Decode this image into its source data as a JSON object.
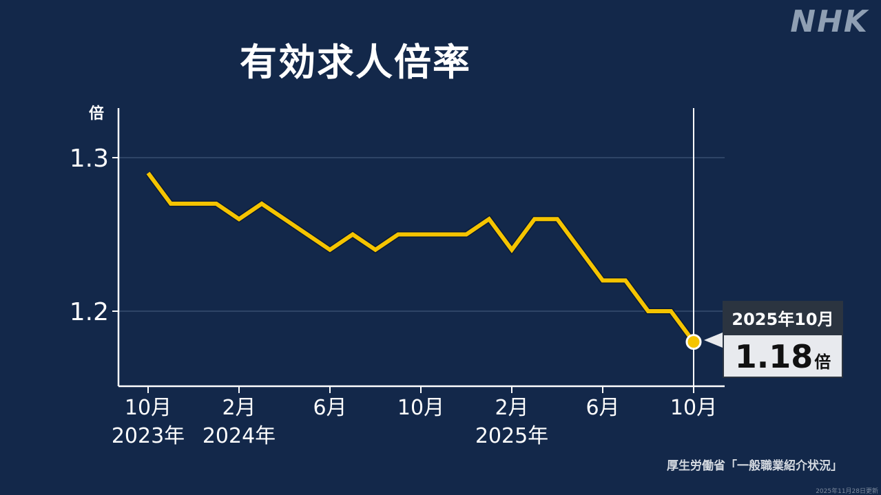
{
  "brand": {
    "logo": "NHK"
  },
  "title": "有効求人倍率",
  "callout": {
    "period": "2025年10月",
    "value": "1.18",
    "unit": "倍"
  },
  "source": "厚生労働省「一般職業紹介状況」",
  "updated": "2025年11月28日更新",
  "colors": {
    "background": "#13284a",
    "line": "#f5c400",
    "axis": "#ffffff",
    "grid": "#2e4466"
  },
  "chart_data": {
    "type": "line",
    "title": "有効求人倍率",
    "ylabel": "倍",
    "xlabel": "",
    "ylim": [
      1.15,
      1.33
    ],
    "yticks": [
      1.2,
      1.3
    ],
    "ytick_labels": [
      "1.2",
      "1.3"
    ],
    "grid": true,
    "x": [
      "2023-10",
      "2023-11",
      "2023-12",
      "2024-01",
      "2024-02",
      "2024-03",
      "2024-04",
      "2024-05",
      "2024-06",
      "2024-07",
      "2024-08",
      "2024-09",
      "2024-10",
      "2024-11",
      "2024-12",
      "2025-01",
      "2025-02",
      "2025-03",
      "2025-04",
      "2025-05",
      "2025-06",
      "2025-07",
      "2025-08",
      "2025-09",
      "2025-10"
    ],
    "series": [
      {
        "name": "有効求人倍率",
        "values": [
          1.29,
          1.27,
          1.27,
          1.27,
          1.26,
          1.27,
          1.26,
          1.25,
          1.24,
          1.25,
          1.24,
          1.25,
          1.25,
          1.25,
          1.25,
          1.26,
          1.24,
          1.26,
          1.26,
          1.24,
          1.22,
          1.22,
          1.2,
          1.2,
          1.18
        ]
      }
    ],
    "xtick_labels": [
      {
        "index": 0,
        "month": "10月",
        "year": "2023年"
      },
      {
        "index": 4,
        "month": "2月",
        "year": "2024年"
      },
      {
        "index": 8,
        "month": "6月",
        "year": ""
      },
      {
        "index": 12,
        "month": "10月",
        "year": ""
      },
      {
        "index": 16,
        "month": "2月",
        "year": "2025年"
      },
      {
        "index": 20,
        "month": "6月",
        "year": ""
      },
      {
        "index": 24,
        "month": "10月",
        "year": ""
      }
    ],
    "annotations": [
      {
        "index": 24,
        "label": "2025年10月",
        "value": "1.18倍"
      }
    ]
  }
}
